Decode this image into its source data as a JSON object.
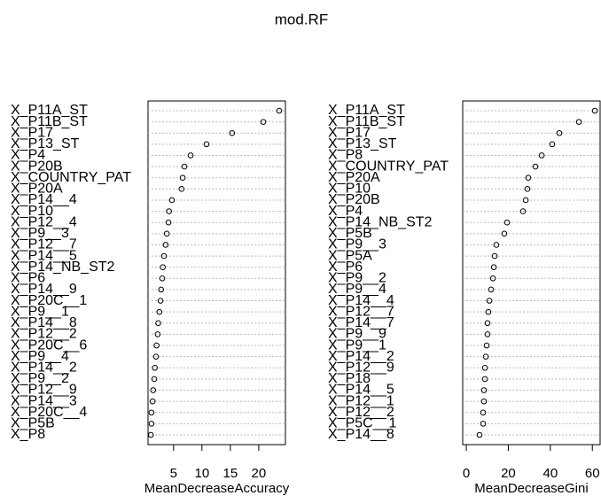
{
  "title": "mod.RF",
  "chart_data": [
    {
      "type": "dot",
      "xlabel": "MeanDecreaseAccuracy",
      "categories": [
        "X_P11A_ST",
        "X_P11B_ST",
        "X_P17",
        "X_P13_ST",
        "X_P4",
        "X_P20B",
        "X_COUNTRY_PAT",
        "X_P20A",
        "X_P14__4",
        "X_P10",
        "X_P12__4",
        "X_P9__3",
        "X_P12__7",
        "X_P14__5",
        "X_P14_NB_ST2",
        "X_P6",
        "X_P14__9",
        "X_P20C__1",
        "X_P9__1",
        "X_P14__8",
        "X_P12__2",
        "X_P20C__6",
        "X_P9__4",
        "X_P14__2",
        "X_P9__2",
        "X_P12__9",
        "X_P14__3",
        "X_P20C__4",
        "X_P5B",
        "X_P8"
      ],
      "values": [
        23.6,
        20.8,
        15.3,
        10.8,
        8.0,
        6.9,
        6.6,
        6.4,
        4.7,
        4.2,
        4.1,
        3.8,
        3.6,
        3.3,
        3.1,
        3.0,
        2.8,
        2.7,
        2.5,
        2.3,
        2.2,
        2.0,
        1.9,
        1.7,
        1.6,
        1.4,
        1.3,
        1.1,
        1.1,
        1.0
      ],
      "xlim": [
        0.5,
        24.7
      ],
      "xticks": [
        5,
        10,
        15,
        20
      ]
    },
    {
      "type": "dot",
      "xlabel": "MeanDecreaseGini",
      "categories": [
        "X_P11A_ST",
        "X_P11B_ST",
        "X_P17",
        "X_P13_ST",
        "X_P8",
        "X_COUNTRY_PAT",
        "X_P20A",
        "X_P10",
        "X_P20B",
        "X_P4",
        "X_P14_NB_ST2",
        "X_P5B",
        "X_P9__3",
        "X_P5A",
        "X_P6",
        "X_P9__2",
        "X_P9__4",
        "X_P14__4",
        "X_P12__7",
        "X_P14__7",
        "X_P9__9",
        "X_P9__1",
        "X_P14__2",
        "X_P12__9",
        "X_P18",
        "X_P14__5",
        "X_P12__1",
        "X_P12__2",
        "X_P5C__1",
        "X_P14__8"
      ],
      "values": [
        61.2,
        53.6,
        44.3,
        40.9,
        35.9,
        32.9,
        29.5,
        29.1,
        28.3,
        27.0,
        19.4,
        18.1,
        14.3,
        13.5,
        13.1,
        12.7,
        11.8,
        11.0,
        10.5,
        10.1,
        10.1,
        9.7,
        9.3,
        8.9,
        8.9,
        8.4,
        8.4,
        8.0,
        8.0,
        6.3
      ],
      "xlim": [
        -1.7,
        63.7
      ],
      "xticks": [
        0,
        20,
        40,
        60
      ]
    }
  ]
}
